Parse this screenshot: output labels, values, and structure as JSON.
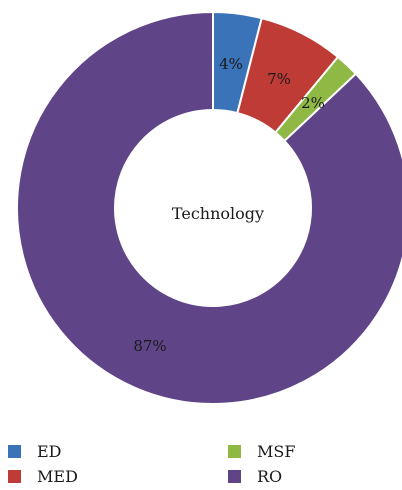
{
  "chart_data": {
    "type": "pie",
    "center_label": "Technology",
    "categories": [
      "ED",
      "MED",
      "MSF",
      "RO"
    ],
    "values": [
      4,
      7,
      2,
      87
    ],
    "labels": [
      "4%",
      "7%",
      "2%",
      "87%"
    ],
    "colors": [
      "#3b73b9",
      "#be3b36",
      "#8fb845",
      "#5f4588"
    ],
    "legend_position": "bottom"
  },
  "legend": {
    "items": [
      {
        "label": "ED",
        "color": "#3b73b9"
      },
      {
        "label": "MED",
        "color": "#be3b36"
      },
      {
        "label": "MSF",
        "color": "#8fb845"
      },
      {
        "label": "RO",
        "color": "#5f4588"
      }
    ]
  }
}
